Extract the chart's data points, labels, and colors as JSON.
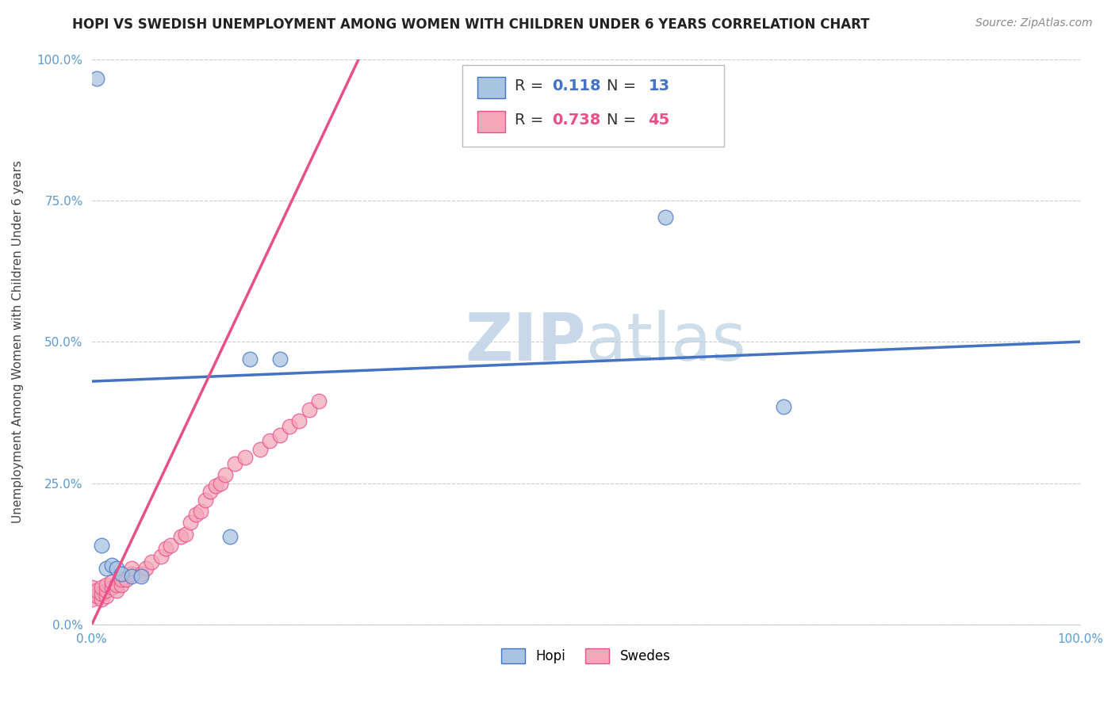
{
  "title": "HOPI VS SWEDISH UNEMPLOYMENT AMONG WOMEN WITH CHILDREN UNDER 6 YEARS CORRELATION CHART",
  "source": "Source: ZipAtlas.com",
  "ylabel": "Unemployment Among Women with Children Under 6 years",
  "xlim": [
    0.0,
    1.0
  ],
  "ylim": [
    0.0,
    1.0
  ],
  "ytick_vals": [
    0.0,
    0.25,
    0.5,
    0.75,
    1.0
  ],
  "xtick_vals": [
    0.0,
    1.0
  ],
  "hopi_R": "0.118",
  "hopi_N": "13",
  "swedes_R": "0.738",
  "swedes_N": "45",
  "hopi_color": "#a8c4e0",
  "swedes_color": "#f4a7b9",
  "hopi_line_color": "#4472c4",
  "swedes_line_color": "#e8508a",
  "watermark_zip": "ZIP",
  "watermark_atlas": "atlas",
  "watermark_color": "#c8d8ea",
  "hopi_scatter_x": [
    0.005,
    0.01,
    0.015,
    0.02,
    0.025,
    0.03,
    0.04,
    0.05,
    0.14,
    0.16,
    0.19,
    0.58,
    0.7
  ],
  "hopi_scatter_y": [
    0.965,
    0.14,
    0.1,
    0.105,
    0.1,
    0.09,
    0.085,
    0.085,
    0.155,
    0.47,
    0.47,
    0.72,
    0.385
  ],
  "swedes_scatter_x": [
    0.0,
    0.0,
    0.0,
    0.005,
    0.005,
    0.01,
    0.01,
    0.01,
    0.015,
    0.015,
    0.015,
    0.02,
    0.02,
    0.025,
    0.025,
    0.03,
    0.03,
    0.035,
    0.04,
    0.04,
    0.05,
    0.055,
    0.06,
    0.07,
    0.075,
    0.08,
    0.09,
    0.095,
    0.1,
    0.105,
    0.11,
    0.115,
    0.12,
    0.125,
    0.13,
    0.135,
    0.145,
    0.155,
    0.17,
    0.18,
    0.19,
    0.2,
    0.21,
    0.22,
    0.23
  ],
  "swedes_scatter_y": [
    0.045,
    0.055,
    0.065,
    0.05,
    0.06,
    0.045,
    0.055,
    0.065,
    0.05,
    0.06,
    0.07,
    0.065,
    0.075,
    0.06,
    0.07,
    0.07,
    0.08,
    0.08,
    0.09,
    0.1,
    0.09,
    0.1,
    0.11,
    0.12,
    0.135,
    0.14,
    0.155,
    0.16,
    0.18,
    0.195,
    0.2,
    0.22,
    0.235,
    0.245,
    0.25,
    0.265,
    0.285,
    0.295,
    0.31,
    0.325,
    0.335,
    0.35,
    0.36,
    0.38,
    0.395
  ],
  "hopi_line_x": [
    0.0,
    1.0
  ],
  "hopi_line_y": [
    0.43,
    0.5
  ],
  "swedes_line_x": [
    0.0,
    0.27
  ],
  "swedes_line_y": [
    0.0,
    1.0
  ],
  "title_fontsize": 12,
  "source_fontsize": 10,
  "label_fontsize": 11,
  "tick_fontsize": 11,
  "legend_fontsize": 14
}
